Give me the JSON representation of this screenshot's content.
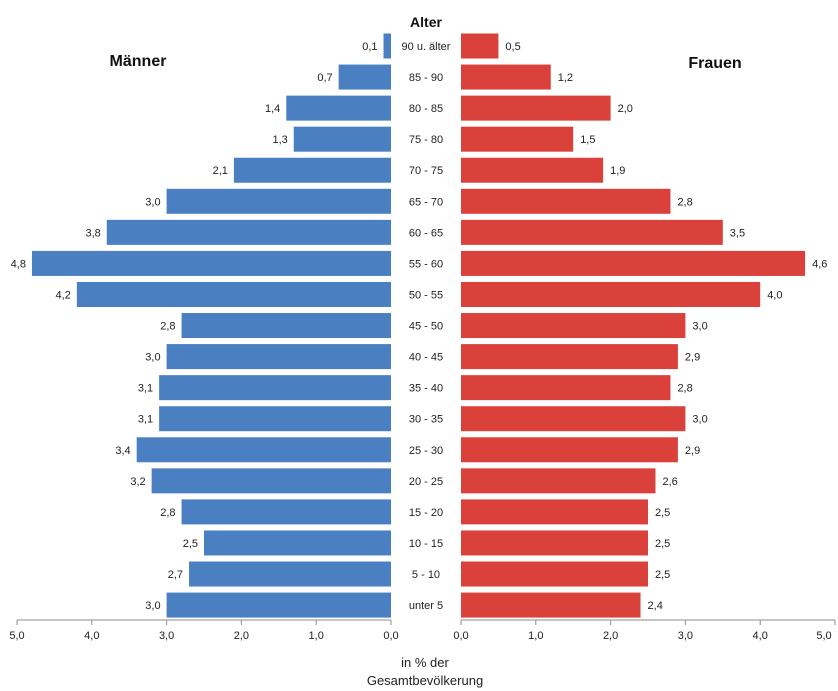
{
  "chart_data": {
    "type": "bar",
    "orientation": "horizontal",
    "layout": "population-pyramid",
    "center_label": "Alter",
    "categories": [
      "90 u. älter",
      "85 - 90",
      "80 - 85",
      "75 - 80",
      "70 - 75",
      "65 - 70",
      "60 - 65",
      "55 - 60",
      "50 - 55",
      "45 - 50",
      "40 - 45",
      "35 - 40",
      "30 - 35",
      "25 - 30",
      "20 - 25",
      "15 - 20",
      "10 - 15",
      "5 - 10",
      "unter 5"
    ],
    "series": [
      {
        "name": "Männer",
        "color": "#4a7fc1",
        "values": [
          0.1,
          0.7,
          1.4,
          1.3,
          2.1,
          3.0,
          3.8,
          4.8,
          4.2,
          2.8,
          3.0,
          3.1,
          3.1,
          3.4,
          3.2,
          2.8,
          2.5,
          2.7,
          3.0
        ],
        "value_labels": [
          "0,1",
          "0,7",
          "1,4",
          "1,3",
          "2,1",
          "3,0",
          "3,8",
          "4,8",
          "4,2",
          "2,8",
          "3,0",
          "3,1",
          "3,1",
          "3,4",
          "3,2",
          "2,8",
          "2,5",
          "2,7",
          "3,0"
        ]
      },
      {
        "name": "Frauen",
        "color": "#d9413a",
        "values": [
          0.5,
          1.2,
          2.0,
          1.5,
          1.9,
          2.8,
          3.5,
          4.6,
          4.0,
          3.0,
          2.9,
          2.8,
          3.0,
          2.9,
          2.6,
          2.5,
          2.5,
          2.5,
          2.4
        ],
        "value_labels": [
          "0,5",
          "1,2",
          "2,0",
          "1,5",
          "1,9",
          "2,8",
          "3,5",
          "4,6",
          "4,0",
          "3,0",
          "2,9",
          "2,8",
          "3,0",
          "2,9",
          "2,6",
          "2,5",
          "2,5",
          "2,5",
          "2,4"
        ]
      }
    ],
    "xlim": [
      0,
      5
    ],
    "x_ticks": [
      0,
      1,
      2,
      3,
      4,
      5
    ],
    "x_tick_labels_left": [
      "5,0",
      "4,0",
      "3,0",
      "2,0",
      "1,0",
      "0,0"
    ],
    "x_tick_labels_right": [
      "0,0",
      "1,0",
      "2,0",
      "3,0",
      "4,0",
      "5,0"
    ],
    "xlabel_lines": [
      "in % der",
      "Gesamtbevölkerung"
    ],
    "grid": false,
    "axis_color": "#8c8c8c"
  }
}
